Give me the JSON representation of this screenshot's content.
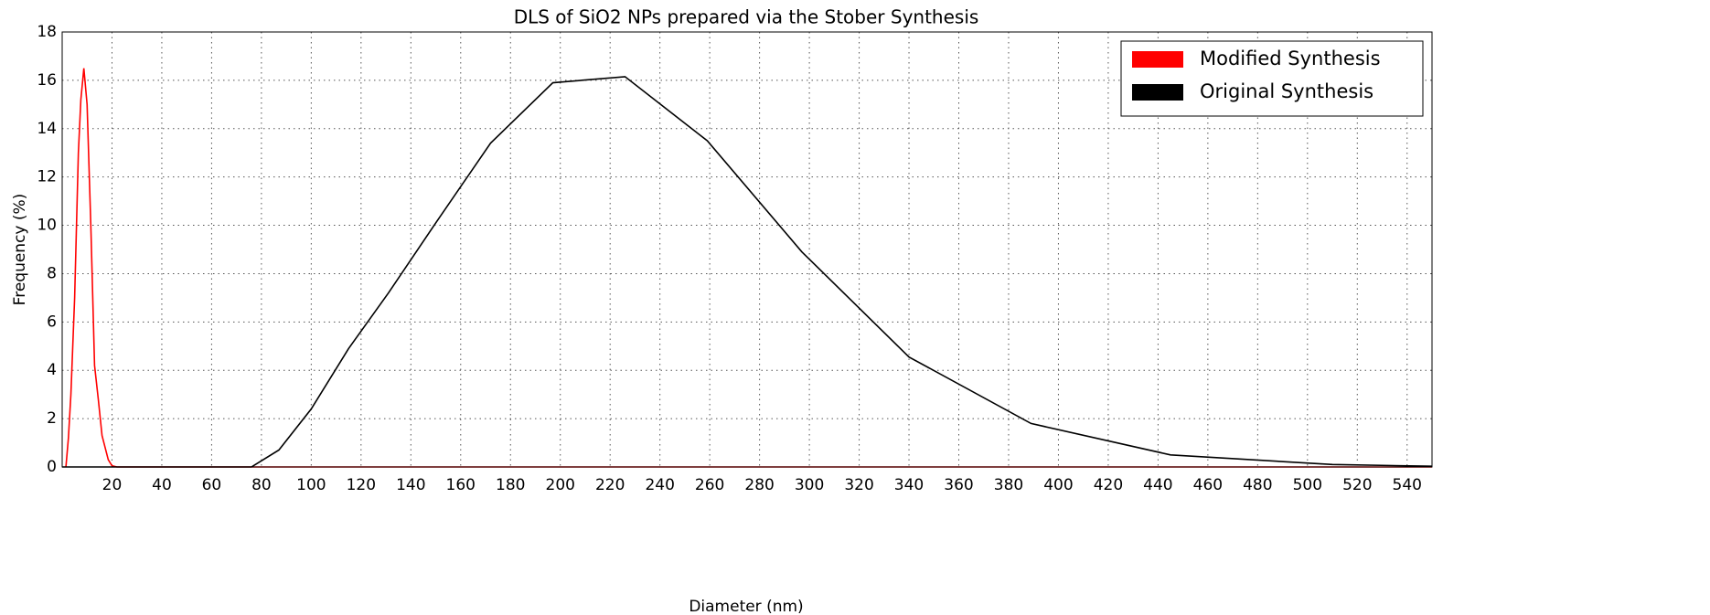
{
  "chart_data": {
    "type": "line",
    "title": "DLS of SiO2 NPs prepared via the Stober Synthesis",
    "xlabel": "Diameter (nm)",
    "ylabel": "Frequency (%)",
    "series": [
      {
        "name": "Modified Synthesis",
        "color": "#ff0000",
        "x": [
          1.5,
          2.5,
          3.5,
          5,
          6.5,
          7.5,
          8.7,
          10,
          11.5,
          13,
          14.5,
          16,
          18.5,
          20,
          22,
          550
        ],
        "values": [
          0,
          1.2,
          3,
          7,
          13,
          15.2,
          16.5,
          15,
          10,
          4.2,
          2.8,
          1.3,
          0.3,
          0.05,
          0,
          0
        ]
      },
      {
        "name": "Original Synthesis",
        "color": "#000000",
        "x": [
          0,
          76,
          87,
          100,
          115,
          131,
          150,
          172,
          197,
          226,
          259,
          297,
          340,
          389,
          445,
          510,
          550
        ],
        "values": [
          0,
          0,
          0.7,
          2.4,
          4.9,
          7.2,
          10.1,
          13.4,
          15.9,
          16.15,
          13.5,
          8.9,
          4.55,
          1.8,
          0.5,
          0.1,
          0.03
        ]
      }
    ],
    "xlim": [
      0,
      550
    ],
    "xticks": [
      20,
      40,
      60,
      80,
      100,
      120,
      140,
      160,
      180,
      200,
      220,
      240,
      260,
      280,
      300,
      320,
      340,
      360,
      380,
      400,
      420,
      440,
      460,
      480,
      500,
      520,
      540
    ],
    "ylim": [
      0,
      18
    ],
    "yticks": [
      0,
      2,
      4,
      6,
      8,
      10,
      12,
      14,
      16,
      18
    ],
    "grid": true,
    "legend": "upper right"
  }
}
